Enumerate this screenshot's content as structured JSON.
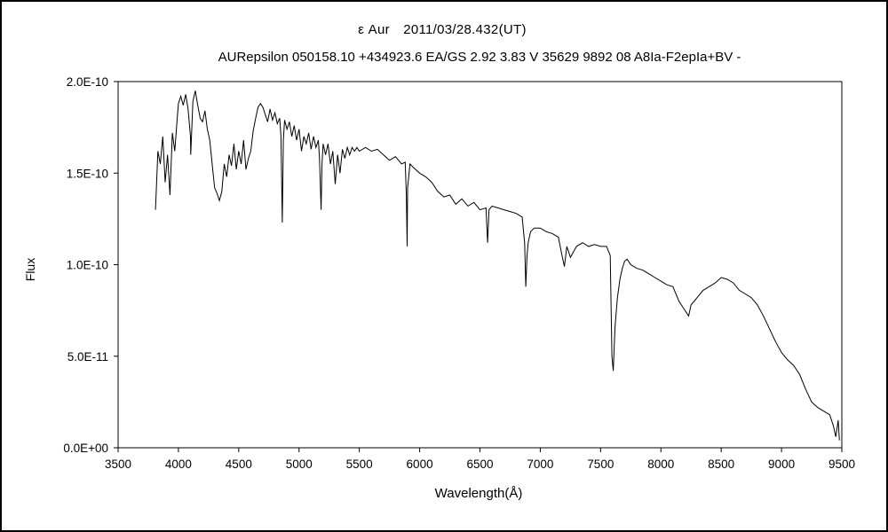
{
  "chart_data": {
    "type": "line",
    "title": "ε Aur　2011/03/28.432(UT)",
    "subtitle": "AURepsilon 050158.10 +434923.6 EA/GS 2.92 3.83 V 35629 9892 08 A8Ia-F2epIa+BV -",
    "xlabel": "Wavelength(Å)",
    "ylabel": "Flux",
    "xlim": [
      3500,
      9500
    ],
    "ylim": [
      0,
      2e-10
    ],
    "x_ticks": [
      3500,
      4000,
      4500,
      5000,
      5500,
      6000,
      6500,
      7000,
      7500,
      8000,
      8500,
      9000,
      9500
    ],
    "x_tick_labels": [
      "3500",
      "4000",
      "4500",
      "5000",
      "5500",
      "6000",
      "6500",
      "7000",
      "7500",
      "8000",
      "8500",
      "9000",
      "9500"
    ],
    "y_ticks": [
      0,
      5e-11,
      1e-10,
      1.5e-10,
      2e-10
    ],
    "y_tick_labels": [
      "0.0E+00",
      "5.0E-11",
      "1.0E-10",
      "1.5E-10",
      "2.0E-10"
    ],
    "grid": false,
    "legend": "none",
    "series": [
      {
        "color": "#000000",
        "x": [
          3810,
          3830,
          3850,
          3870,
          3890,
          3910,
          3930,
          3950,
          3970,
          3990,
          4000,
          4020,
          4040,
          4060,
          4080,
          4100,
          4102,
          4120,
          4140,
          4160,
          4180,
          4200,
          4220,
          4240,
          4260,
          4280,
          4300,
          4320,
          4340,
          4360,
          4380,
          4400,
          4420,
          4440,
          4460,
          4480,
          4500,
          4520,
          4540,
          4560,
          4580,
          4600,
          4620,
          4640,
          4660,
          4680,
          4700,
          4720,
          4740,
          4760,
          4780,
          4800,
          4820,
          4840,
          4850,
          4861,
          4870,
          4880,
          4900,
          4920,
          4940,
          4960,
          4980,
          5000,
          5020,
          5040,
          5060,
          5080,
          5100,
          5120,
          5140,
          5160,
          5170,
          5183,
          5190,
          5200,
          5220,
          5240,
          5260,
          5280,
          5300,
          5320,
          5340,
          5360,
          5380,
          5400,
          5420,
          5440,
          5460,
          5480,
          5500,
          5550,
          5600,
          5650,
          5700,
          5750,
          5800,
          5850,
          5880,
          5890,
          5896,
          5900,
          5920,
          5950,
          6000,
          6050,
          6100,
          6150,
          6200,
          6250,
          6300,
          6350,
          6400,
          6450,
          6500,
          6550,
          6563,
          6575,
          6600,
          6650,
          6700,
          6750,
          6800,
          6850,
          6870,
          6880,
          6890,
          6900,
          6920,
          6950,
          7000,
          7050,
          7100,
          7150,
          7180,
          7200,
          7220,
          7250,
          7300,
          7350,
          7400,
          7450,
          7500,
          7550,
          7580,
          7594,
          7605,
          7620,
          7640,
          7660,
          7680,
          7700,
          7720,
          7750,
          7800,
          7850,
          7900,
          7950,
          8000,
          8050,
          8100,
          8150,
          8200,
          8230,
          8250,
          8300,
          8350,
          8400,
          8450,
          8500,
          8550,
          8600,
          8650,
          8700,
          8750,
          8800,
          8850,
          8900,
          8950,
          9000,
          9050,
          9100,
          9150,
          9200,
          9250,
          9300,
          9350,
          9400,
          9430,
          9450,
          9470,
          9480
        ],
        "y": [
          1.3e-10,
          1.62e-10,
          1.55e-10,
          1.7e-10,
          1.45e-10,
          1.6e-10,
          1.38e-10,
          1.72e-10,
          1.62e-10,
          1.8e-10,
          1.88e-10,
          1.92e-10,
          1.87e-10,
          1.93e-10,
          1.85e-10,
          1.7e-10,
          1.6e-10,
          1.89e-10,
          1.95e-10,
          1.87e-10,
          1.8e-10,
          1.78e-10,
          1.84e-10,
          1.74e-10,
          1.68e-10,
          1.55e-10,
          1.42e-10,
          1.39e-10,
          1.35e-10,
          1.4e-10,
          1.55e-10,
          1.48e-10,
          1.6e-10,
          1.54e-10,
          1.66e-10,
          1.52e-10,
          1.62e-10,
          1.55e-10,
          1.68e-10,
          1.52e-10,
          1.58e-10,
          1.62e-10,
          1.73e-10,
          1.8e-10,
          1.86e-10,
          1.88e-10,
          1.86e-10,
          1.82e-10,
          1.78e-10,
          1.85e-10,
          1.79e-10,
          1.83e-10,
          1.77e-10,
          1.8e-10,
          1.7e-10,
          1.23e-10,
          1.68e-10,
          1.79e-10,
          1.74e-10,
          1.78e-10,
          1.7e-10,
          1.76e-10,
          1.68e-10,
          1.74e-10,
          1.62e-10,
          1.7e-10,
          1.66e-10,
          1.72e-10,
          1.63e-10,
          1.7e-10,
          1.64e-10,
          1.68e-10,
          1.58e-10,
          1.3e-10,
          1.55e-10,
          1.66e-10,
          1.6e-10,
          1.66e-10,
          1.55e-10,
          1.62e-10,
          1.44e-10,
          1.6e-10,
          1.5e-10,
          1.63e-10,
          1.58e-10,
          1.64e-10,
          1.6e-10,
          1.64e-10,
          1.62e-10,
          1.64e-10,
          1.62e-10,
          1.64e-10,
          1.62e-10,
          1.63e-10,
          1.6e-10,
          1.57e-10,
          1.59e-10,
          1.55e-10,
          1.56e-10,
          1.38e-10,
          1.1e-10,
          1.42e-10,
          1.55e-10,
          1.53e-10,
          1.5e-10,
          1.48e-10,
          1.45e-10,
          1.4e-10,
          1.37e-10,
          1.38e-10,
          1.33e-10,
          1.36e-10,
          1.32e-10,
          1.34e-10,
          1.3e-10,
          1.31e-10,
          1.12e-10,
          1.3e-10,
          1.32e-10,
          1.31e-10,
          1.3e-10,
          1.29e-10,
          1.28e-10,
          1.26e-10,
          1.12e-10,
          8.8e-11,
          1.05e-10,
          1.12e-10,
          1.18e-10,
          1.2e-10,
          1.2e-10,
          1.18e-10,
          1.17e-10,
          1.15e-10,
          1.05e-10,
          9.9e-11,
          1.1e-10,
          1.04e-10,
          1.1e-10,
          1.12e-10,
          1.1e-10,
          1.11e-10,
          1.1e-10,
          1.1e-10,
          1.05e-10,
          5e-11,
          4.2e-11,
          6.6e-11,
          8.2e-11,
          9.2e-11,
          9.8e-11,
          1.02e-10,
          1.03e-10,
          1e-10,
          9.8e-11,
          9.7e-11,
          9.5e-11,
          9.3e-11,
          9.1e-11,
          8.9e-11,
          8.8e-11,
          8e-11,
          7.5e-11,
          7.2e-11,
          7.8e-11,
          8.2e-11,
          8.6e-11,
          8.8e-11,
          9e-11,
          9.3e-11,
          9.2e-11,
          9e-11,
          8.6e-11,
          8.4e-11,
          8.2e-11,
          7.8e-11,
          7.2e-11,
          6.5e-11,
          5.8e-11,
          5.2e-11,
          4.8e-11,
          4.5e-11,
          4e-11,
          3.2e-11,
          2.5e-11,
          2.2e-11,
          2e-11,
          1.8e-11,
          1.2e-11,
          6e-12,
          1.5e-11,
          4e-12
        ]
      }
    ]
  }
}
